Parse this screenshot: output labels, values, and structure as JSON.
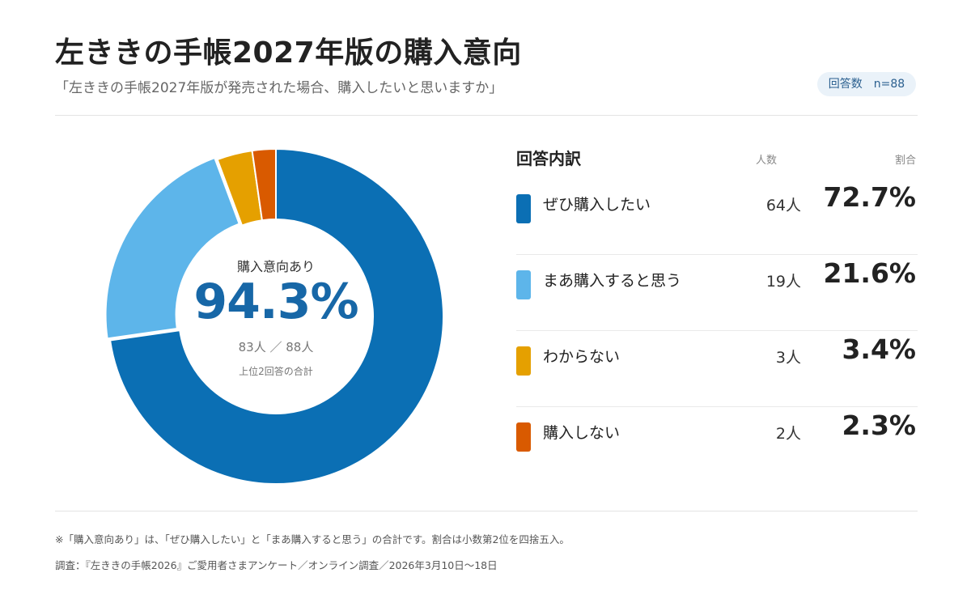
{
  "header": {
    "title": "左ききの手帳2027年版の購入意向",
    "subtitle": "「左ききの手帳2027年版が発売された場合、購入したいと思いますか」",
    "badge": "回答数　n=88"
  },
  "center": {
    "caption": "購入意向あり",
    "value": "94.3%",
    "count": "83人 ／ 88人",
    "note": "上位2回答の合計"
  },
  "legend": {
    "title": "回答内訳",
    "count_header": "人数",
    "share_header": "割合"
  },
  "chart_data": {
    "type": "pie",
    "style": "donut",
    "categories": [
      "ぜひ購入したい",
      "まあ購入すると思う",
      "わからない",
      "購入しない"
    ],
    "values": [
      64,
      19,
      3,
      2
    ],
    "count_labels": [
      "64人",
      "19人",
      "3人",
      "2人"
    ],
    "percent_labels": [
      "72.7%",
      "21.6%",
      "3.4%",
      "2.3%"
    ],
    "colors": [
      "#0b6fb4",
      "#5db5ea",
      "#e5a000",
      "#d95a00"
    ],
    "start_angle": "12 o'clock",
    "direction": "clockwise",
    "highlight_slice": 1
  },
  "footer": {
    "note": "※「購入意向あり」は、「ぜひ購入したい」と「まあ購入すると思う」の合計です。割合は小数第2位を四捨五入。",
    "source": "調査：『左ききの手帳2026』ご愛用者さまアンケート／オンライン調査／2026年3月10日〜18日"
  }
}
